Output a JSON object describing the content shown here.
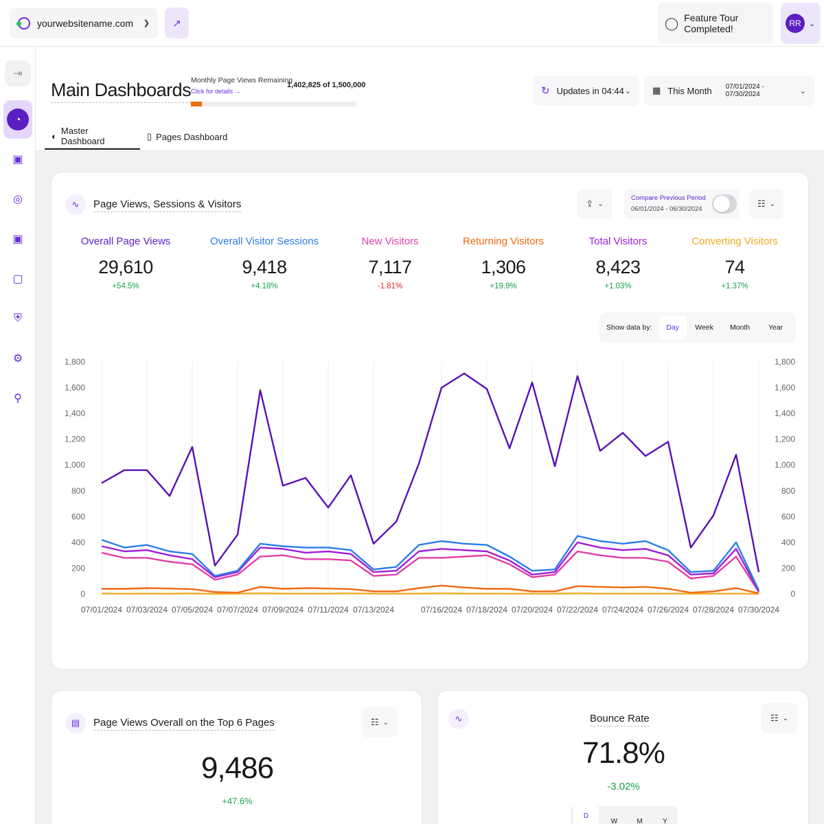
{
  "topbar": {
    "site": "yourwebsitename.com",
    "tour": "Feature Tour Completed!",
    "avatar_initials": "RR"
  },
  "sidebar": {
    "icons": [
      "login-icon",
      "dashboard-icon",
      "shopping-bag-icon",
      "traffic-icon",
      "scan-icon",
      "chat-icon",
      "shield-icon",
      "gear-icon",
      "location-icon"
    ]
  },
  "header": {
    "title": "Main Dashboards",
    "quota_label": "Monthly Page Views Remaining",
    "quota_link": "Click for details →",
    "quota_value": "1,402,825 of 1,500,000",
    "quota_used_fraction": 0.065,
    "updates": "Updates in 04:44",
    "period": "This Month",
    "period_dates": "07/01/2024 - 07/30/2024",
    "tabs": [
      "Master Dashboard",
      "Pages Dashboard"
    ]
  },
  "main_card": {
    "title": "Page Views, Sessions & Visitors",
    "compare_label": "Compare Previous Period",
    "compare_dates": "06/01/2024 - 06/30/2024",
    "metrics": [
      {
        "label": "Overall Page Views",
        "value": "29,610",
        "delta": "+54.5%",
        "color": "#5a1fc2",
        "delta_color": "#16a34a"
      },
      {
        "label": "Overall Visitor Sessions",
        "value": "9,418",
        "delta": "+4.18%",
        "color": "#2b7de9",
        "delta_color": "#16a34a"
      },
      {
        "label": "New Visitors",
        "value": "7,117",
        "delta": "-1.81%",
        "color": "#e23da8",
        "delta_color": "#dc2626"
      },
      {
        "label": "Returning Visitors",
        "value": "1,306",
        "delta": "+19.9%",
        "color": "#f06a14",
        "delta_color": "#16a34a"
      },
      {
        "label": "Total Visitors",
        "value": "8,423",
        "delta": "+1.03%",
        "color": "#a11ed8",
        "delta_color": "#16a34a"
      },
      {
        "label": "Converting Visitors",
        "value": "74",
        "delta": "+1.37%",
        "color": "#f2a922",
        "delta_color": "#16a34a"
      }
    ],
    "show_by_label": "Show data by:",
    "show_by_options": [
      "Day",
      "Week",
      "Month",
      "Year"
    ]
  },
  "chart_data": {
    "type": "line",
    "ylim": [
      0,
      1800
    ],
    "y_ticks": [
      0,
      200,
      400,
      600,
      800,
      1000,
      1200,
      1400,
      1600,
      1800
    ],
    "y_tick_labels": [
      "0",
      "200",
      "400",
      "600",
      "800",
      "1,000",
      "1,200",
      "1,400",
      "1,600",
      "1,800"
    ],
    "x": [
      "07/01/2024",
      "07/02/2024",
      "07/03/2024",
      "07/04/2024",
      "07/05/2024",
      "07/06/2024",
      "07/07/2024",
      "07/08/2024",
      "07/09/2024",
      "07/10/2024",
      "07/11/2024",
      "07/12/2024",
      "07/13/2024",
      "07/14/2024",
      "07/15/2024",
      "07/16/2024",
      "07/17/2024",
      "07/18/2024",
      "07/19/2024",
      "07/20/2024",
      "07/21/2024",
      "07/22/2024",
      "07/23/2024",
      "07/24/2024",
      "07/25/2024",
      "07/26/2024",
      "07/27/2024",
      "07/28/2024",
      "07/29/2024",
      "07/30/2024"
    ],
    "x_tick_labels": [
      "07/01/2024",
      "07/03/2024",
      "07/05/2024",
      "07/07/2024",
      "07/09/2024",
      "07/11/2024",
      "07/13/2024",
      "07/16/2024",
      "07/18/2024",
      "07/20/2024",
      "07/22/2024",
      "07/24/2024",
      "07/26/2024",
      "07/28/2024",
      "07/30/2024"
    ],
    "series": [
      {
        "name": "Overall Page Views",
        "color": "#5a0fb5",
        "values": [
          860,
          960,
          960,
          760,
          1140,
          220,
          460,
          1580,
          840,
          900,
          670,
          920,
          390,
          560,
          1010,
          1600,
          1710,
          1590,
          1130,
          1640,
          990,
          1690,
          1110,
          1250,
          1070,
          1180,
          360,
          610,
          1080,
          170
        ]
      },
      {
        "name": "Overall Visitor Sessions",
        "color": "#2b7de9",
        "values": [
          420,
          360,
          380,
          330,
          310,
          140,
          180,
          390,
          370,
          360,
          360,
          340,
          190,
          210,
          380,
          410,
          390,
          380,
          290,
          180,
          190,
          450,
          410,
          390,
          410,
          340,
          170,
          180,
          400,
          30
        ]
      },
      {
        "name": "Total Visitors",
        "color": "#a11ed8",
        "values": [
          370,
          330,
          340,
          300,
          270,
          130,
          170,
          360,
          350,
          320,
          330,
          310,
          170,
          180,
          330,
          350,
          340,
          330,
          260,
          150,
          170,
          400,
          360,
          340,
          350,
          300,
          150,
          160,
          350,
          20
        ]
      },
      {
        "name": "New Visitors",
        "color": "#e23da8",
        "values": [
          320,
          280,
          280,
          250,
          230,
          110,
          150,
          290,
          300,
          270,
          270,
          260,
          140,
          150,
          280,
          280,
          290,
          300,
          230,
          130,
          150,
          330,
          300,
          280,
          280,
          250,
          120,
          140,
          290,
          15
        ]
      },
      {
        "name": "Returning Visitors",
        "color": "#f06a14",
        "values": [
          40,
          40,
          45,
          42,
          38,
          15,
          10,
          55,
          40,
          45,
          42,
          38,
          20,
          20,
          45,
          65,
          50,
          40,
          40,
          20,
          20,
          60,
          55,
          50,
          55,
          40,
          10,
          20,
          45,
          5
        ]
      },
      {
        "name": "Converting Visitors",
        "color": "#f2a922",
        "values": [
          3,
          2,
          3,
          2,
          4,
          1,
          2,
          5,
          3,
          3,
          3,
          4,
          2,
          2,
          3,
          4,
          3,
          3,
          2,
          2,
          2,
          4,
          3,
          3,
          3,
          3,
          2,
          2,
          3,
          1
        ]
      }
    ]
  },
  "card_top_pages": {
    "title": "Page Views Overall on the Top 6 Pages",
    "value": "9,486",
    "delta": "+47.6%"
  },
  "card_bounce": {
    "title": "Bounce Rate",
    "value": "71.8%",
    "delta": "-3.02%",
    "tabs": [
      "D",
      "W",
      "M",
      "Y"
    ]
  }
}
